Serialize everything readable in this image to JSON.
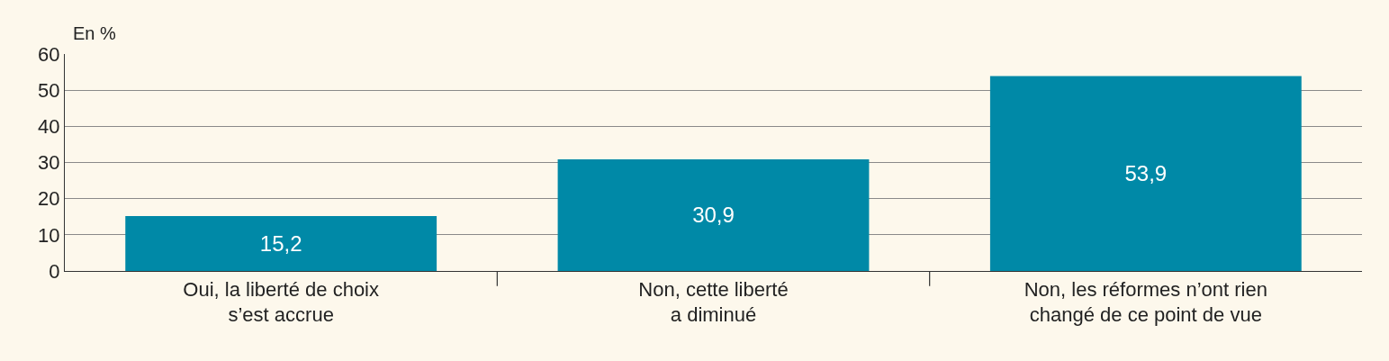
{
  "chart_data": {
    "type": "bar",
    "ylabel": "En %",
    "categories": [
      "Oui, la liberté de choix\ns’est accrue",
      "Non, cette liberté\na diminué",
      "Non, les réformes n’ont rien\nchangé de ce point de vue"
    ],
    "values": [
      15.2,
      30.9,
      53.9
    ],
    "value_labels": [
      "15,2",
      "30,9",
      "53,9"
    ],
    "color": "#0089a7",
    "ylim": [
      0,
      60
    ],
    "yticks": [
      0,
      10,
      20,
      30,
      40,
      50,
      60
    ],
    "grid": "y"
  }
}
